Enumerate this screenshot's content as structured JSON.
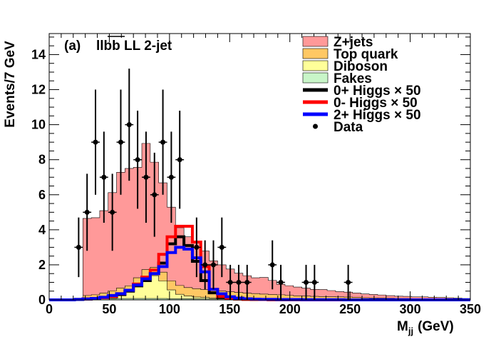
{
  "chart_data": {
    "type": "histogram",
    "panel_label": "(a)",
    "region_label": "llbb LL 2-jet",
    "xlabel": "M",
    "xlabel_sub": "jj",
    "xlabel_unit": "(GeV)",
    "ylabel": "Events/7 GeV",
    "xlim": [
      0,
      350
    ],
    "ylim": [
      0,
      15.2
    ],
    "x_ticks": [
      0,
      50,
      100,
      150,
      200,
      250,
      300,
      350
    ],
    "y_ticks": [
      0,
      2,
      4,
      6,
      8,
      10,
      12,
      14
    ],
    "bin_edges": [
      0,
      7,
      14,
      21,
      28,
      35,
      42,
      49,
      56,
      63,
      70,
      77,
      84,
      91,
      98,
      105,
      112,
      119,
      126,
      133,
      140,
      147,
      154,
      161,
      168,
      175,
      182,
      189,
      196,
      203,
      210,
      217,
      224,
      231,
      238,
      245,
      252,
      259,
      266,
      273,
      280,
      287,
      294,
      301,
      308,
      315,
      322,
      329,
      336,
      343,
      350
    ],
    "stack": [
      {
        "name": "Fakes",
        "color": "#c8f5c8",
        "values": [
          0,
          0,
          0,
          0.02,
          0.05,
          0.06,
          0.07,
          0.07,
          0.08,
          0.08,
          0.08,
          0.08,
          0.08,
          0.08,
          0.07,
          0.07,
          0.07,
          0.06,
          0.06,
          0.05,
          0.05,
          0.05,
          0.04,
          0.04,
          0.04,
          0.03,
          0.03,
          0.03,
          0.03,
          0.02,
          0.02,
          0.02,
          0.02,
          0.02,
          0.02,
          0.02,
          0.01,
          0.01,
          0.01,
          0.01,
          0.01,
          0.01,
          0.01,
          0.01,
          0.01,
          0.01,
          0.01,
          0.01,
          0,
          0
        ]
      },
      {
        "name": "Diboson",
        "color": "#ffff99",
        "values": [
          0,
          0,
          0,
          0,
          0.05,
          0.05,
          0.1,
          0.2,
          0.3,
          0.4,
          0.8,
          1.2,
          1.3,
          1.0,
          0.5,
          0.25,
          0.15,
          0.1,
          0.08,
          0.06,
          0.05,
          0.04,
          0.03,
          0.02,
          0.02,
          0.02,
          0.02,
          0.02,
          0.01,
          0.01,
          0.01,
          0.01,
          0.01,
          0.01,
          0.01,
          0.01,
          0.01,
          0,
          0,
          0,
          0,
          0,
          0,
          0,
          0,
          0,
          0,
          0,
          0,
          0
        ]
      },
      {
        "name": "Top quark",
        "color": "#ffc864",
        "values": [
          0,
          0,
          0,
          0.03,
          0.15,
          0.18,
          0.22,
          0.25,
          0.3,
          0.32,
          0.38,
          0.45,
          0.48,
          0.5,
          0.52,
          0.5,
          0.48,
          0.48,
          0.45,
          0.42,
          0.4,
          0.37,
          0.35,
          0.32,
          0.3,
          0.28,
          0.26,
          0.24,
          0.22,
          0.2,
          0.19,
          0.17,
          0.16,
          0.15,
          0.14,
          0.13,
          0.12,
          0.11,
          0.1,
          0.09,
          0.08,
          0.07,
          0.07,
          0.06,
          0.06,
          0.05,
          0.05,
          0.04,
          0.04,
          0.03
        ]
      },
      {
        "name": "Z+jets",
        "color": "#ff9999",
        "values": [
          0,
          0,
          0,
          0.05,
          4.4,
          4.4,
          4.7,
          5.6,
          6.6,
          6.7,
          6.3,
          7.2,
          6.0,
          5.1,
          4.2,
          3.3,
          2.9,
          2.6,
          2.2,
          1.7,
          1.5,
          1.3,
          1.1,
          1.0,
          0.9,
          0.95,
          0.8,
          0.6,
          0.55,
          0.5,
          0.45,
          0.4,
          0.4,
          0.35,
          0.3,
          0.28,
          0.25,
          0.22,
          0.2,
          0.18,
          0.15,
          0.13,
          0.12,
          0.1,
          0.1,
          0.09,
          0.08,
          0.07,
          0.06,
          0.05
        ]
      }
    ],
    "signals": [
      {
        "name": "0+ Higgs",
        "color": "#000000",
        "values": [
          0,
          0,
          0,
          0.02,
          0.05,
          0.08,
          0.12,
          0.18,
          0.3,
          0.5,
          0.8,
          1.1,
          1.5,
          2.1,
          3.2,
          3.6,
          3.1,
          2.2,
          1.1,
          0.4,
          0.15,
          0.08,
          0.05,
          0.03,
          0.02,
          0.02,
          0.01,
          0.01,
          0.01,
          0.01,
          0,
          0,
          0,
          0,
          0,
          0,
          0,
          0,
          0,
          0,
          0,
          0,
          0,
          0,
          0,
          0,
          0,
          0,
          0,
          0
        ]
      },
      {
        "name": "0- Higgs",
        "color": "#ff0000",
        "values": [
          0,
          0,
          0,
          0.02,
          0.05,
          0.08,
          0.12,
          0.2,
          0.35,
          0.55,
          0.9,
          1.3,
          1.7,
          2.6,
          3.6,
          4.2,
          4.2,
          3.3,
          1.9,
          0.6,
          0.2,
          0.1,
          0.05,
          0.03,
          0.02,
          0.02,
          0.01,
          0.01,
          0.01,
          0.01,
          0,
          0,
          0,
          0,
          0,
          0,
          0,
          0,
          0,
          0,
          0,
          0,
          0,
          0,
          0,
          0,
          0,
          0,
          0,
          0
        ]
      },
      {
        "name": "2+ Higgs",
        "color": "#0000ff",
        "values": [
          0,
          0,
          0,
          0.02,
          0.05,
          0.08,
          0.15,
          0.25,
          0.35,
          0.55,
          0.85,
          1.2,
          1.5,
          1.9,
          2.7,
          3.0,
          2.9,
          2.4,
          1.6,
          0.6,
          0.35,
          0.18,
          0.1,
          0.06,
          0.04,
          0.03,
          0.03,
          0.02,
          0.02,
          0.02,
          0.01,
          0.01,
          0.01,
          0.01,
          0.01,
          0,
          0,
          0,
          0,
          0,
          0,
          0,
          0,
          0,
          0,
          0,
          0,
          0,
          0,
          0
        ]
      }
    ],
    "data_points": [
      {
        "x": 24.5,
        "y": 3,
        "err": 1.7
      },
      {
        "x": 31.5,
        "y": 5,
        "err": 2.2
      },
      {
        "x": 38.5,
        "y": 9,
        "err": 3.0
      },
      {
        "x": 45.5,
        "y": 7,
        "err": 2.6
      },
      {
        "x": 52.5,
        "y": 5,
        "err": 2.2
      },
      {
        "x": 59.5,
        "y": 9,
        "err": 3.0
      },
      {
        "x": 66.5,
        "y": 10,
        "err": 3.2
      },
      {
        "x": 73.5,
        "y": 8,
        "err": 2.8
      },
      {
        "x": 80.5,
        "y": 7,
        "err": 2.6
      },
      {
        "x": 87.5,
        "y": 6,
        "err": 2.4
      },
      {
        "x": 94.5,
        "y": 9,
        "err": 3.0
      },
      {
        "x": 101.5,
        "y": 7,
        "err": 2.6
      },
      {
        "x": 108.5,
        "y": 8,
        "err": 2.8
      },
      {
        "x": 122.5,
        "y": 3,
        "err": 1.7
      },
      {
        "x": 129.5,
        "y": 2,
        "err": 1.4
      },
      {
        "x": 136.5,
        "y": 2,
        "err": 1.4
      },
      {
        "x": 143.5,
        "y": 3,
        "err": 1.7
      },
      {
        "x": 150.5,
        "y": 1,
        "err": 1.0
      },
      {
        "x": 157.5,
        "y": 1,
        "err": 1.0
      },
      {
        "x": 164.5,
        "y": 1,
        "err": 1.0
      },
      {
        "x": 185.5,
        "y": 2,
        "err": 1.4
      },
      {
        "x": 192.5,
        "y": 1,
        "err": 1.0
      },
      {
        "x": 213.5,
        "y": 1,
        "err": 1.0
      },
      {
        "x": 220.5,
        "y": 1,
        "err": 1.0
      },
      {
        "x": 248.5,
        "y": 1,
        "err": 1.0
      }
    ],
    "legend": [
      {
        "label": "Z+jets",
        "kind": "fill",
        "color": "#ff9999"
      },
      {
        "label": "Top quark",
        "kind": "fill",
        "color": "#ffc864"
      },
      {
        "label": "Diboson",
        "kind": "fill",
        "color": "#ffff99"
      },
      {
        "label": "Fakes",
        "kind": "fill",
        "color": "#c8f5c8"
      },
      {
        "label": "0+ Higgs × 50",
        "kind": "line",
        "color": "#000000"
      },
      {
        "label": "0- Higgs × 50",
        "kind": "line",
        "color": "#ff0000"
      },
      {
        "label": "2+ Higgs × 50",
        "kind": "line",
        "color": "#0000ff"
      },
      {
        "label": "Data",
        "kind": "marker",
        "color": "#000000"
      }
    ]
  }
}
